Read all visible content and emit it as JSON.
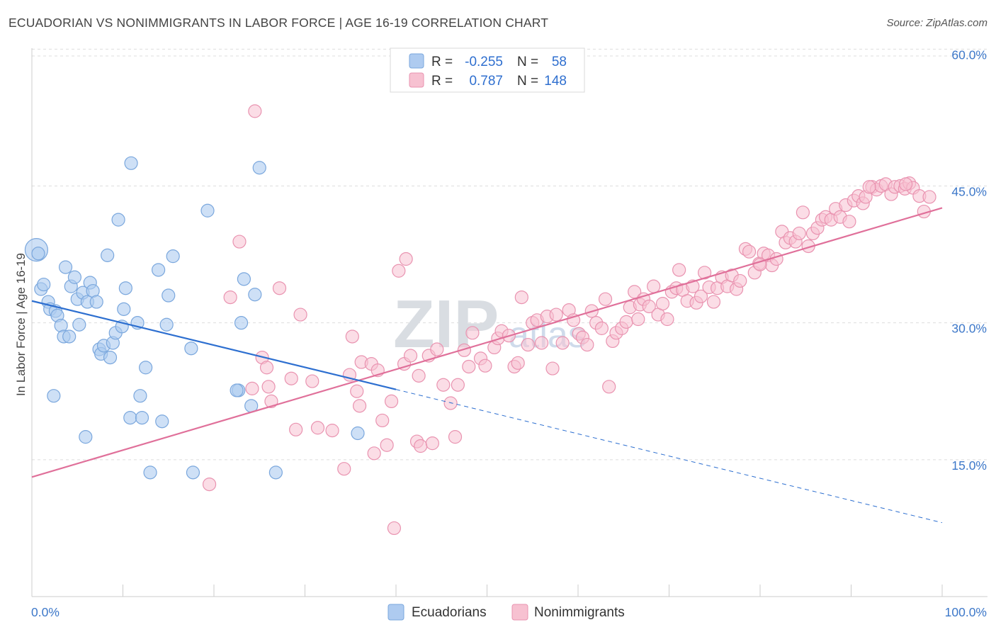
{
  "title": "ECUADORIAN VS NONIMMIGRANTS IN LABOR FORCE | AGE 16-19 CORRELATION CHART",
  "source": "Source: ZipAtlas.com",
  "watermark": {
    "zip": "ZIP",
    "atlas": "atlas"
  },
  "colors": {
    "blue_fill": "#aecbf0",
    "blue_stroke": "#7aa7dd",
    "blue_line": "#2d6fd0",
    "pink_fill": "#f7c1d1",
    "pink_stroke": "#e993b0",
    "pink_line": "#e0709a",
    "grid": "#dddddd",
    "tick_text": "#3d78c9"
  },
  "legend": {
    "rows": [
      {
        "r_label": "R =",
        "r_value": "-0.255",
        "n_label": "N =",
        "n_value": "58"
      },
      {
        "r_label": "R =",
        "r_value": "0.787",
        "n_label": "N =",
        "n_value": "148"
      }
    ]
  },
  "bottom_legend": {
    "series1": "Ecuadorians",
    "series2": "Nonimmigrants"
  },
  "chart_data": {
    "type": "scatter",
    "title": "ECUADORIAN VS NONIMMIGRANTS IN LABOR FORCE | AGE 16-19 CORRELATION CHART",
    "xlabel": "",
    "ylabel": "In Labor Force | Age 16-19",
    "xlim": [
      0,
      100
    ],
    "ylim": [
      0,
      61.5
    ],
    "x_tick_labels": [
      "0.0%",
      "100.0%"
    ],
    "y_ticks": [
      15,
      30,
      45,
      60
    ],
    "y_tick_labels": [
      "15.0%",
      "30.0%",
      "45.0%",
      "60.0%"
    ],
    "series": [
      {
        "name": "Ecuadorians",
        "r": -0.255,
        "n": 58,
        "trend": {
          "x0": 0,
          "y0": 32.4,
          "x1": 40,
          "y1": 22.7,
          "dash_to_x": 100,
          "dash_to_y": 8.1
        },
        "points": [
          [
            0.5,
            38
          ],
          [
            0.7,
            37.6
          ],
          [
            1.0,
            33.7
          ],
          [
            1.3,
            34.2
          ],
          [
            1.8,
            32.3
          ],
          [
            2.0,
            31.5
          ],
          [
            2.4,
            22
          ],
          [
            2.6,
            31.3
          ],
          [
            2.8,
            30.8
          ],
          [
            3.2,
            29.7
          ],
          [
            3.5,
            28.5
          ],
          [
            3.7,
            36.1
          ],
          [
            4.1,
            28.5
          ],
          [
            4.3,
            34
          ],
          [
            4.7,
            35
          ],
          [
            5.0,
            32.6
          ],
          [
            5.2,
            29.8
          ],
          [
            5.6,
            33.3
          ],
          [
            5.9,
            17.5
          ],
          [
            6.1,
            32.3
          ],
          [
            6.4,
            34.4
          ],
          [
            6.7,
            33.5
          ],
          [
            7.1,
            32.3
          ],
          [
            7.4,
            27.1
          ],
          [
            7.6,
            26.6
          ],
          [
            7.9,
            27.5
          ],
          [
            8.3,
            37.4
          ],
          [
            8.6,
            26.2
          ],
          [
            8.9,
            27.8
          ],
          [
            9.2,
            28.9
          ],
          [
            9.5,
            41.3
          ],
          [
            9.9,
            29.6
          ],
          [
            10.1,
            31.5
          ],
          [
            10.3,
            33.8
          ],
          [
            10.8,
            19.6
          ],
          [
            10.9,
            47.5
          ],
          [
            11.6,
            30
          ],
          [
            11.9,
            22
          ],
          [
            12.1,
            19.6
          ],
          [
            12.5,
            25.1
          ],
          [
            13.0,
            13.6
          ],
          [
            13.9,
            35.8
          ],
          [
            14.3,
            19.2
          ],
          [
            14.8,
            29.8
          ],
          [
            15.0,
            33
          ],
          [
            15.5,
            37.3
          ],
          [
            17.5,
            27.2
          ],
          [
            17.7,
            13.6
          ],
          [
            19.3,
            42.3
          ],
          [
            22.7,
            22.6
          ],
          [
            23.0,
            30
          ],
          [
            23.3,
            34.8
          ],
          [
            24.1,
            20.9
          ],
          [
            24.5,
            33.1
          ],
          [
            25.0,
            47
          ],
          [
            26.8,
            13.6
          ],
          [
            35.8,
            17.9
          ],
          [
            22.5,
            22.6
          ]
        ]
      },
      {
        "name": "Nonimmigrants",
        "r": 0.787,
        "n": 148,
        "trend": {
          "x0": 0,
          "y0": 13.1,
          "x1": 100,
          "y1": 42.6
        },
        "points": [
          [
            19.5,
            12.3
          ],
          [
            21.8,
            32.8
          ],
          [
            22.8,
            38.9
          ],
          [
            24.2,
            22.8
          ],
          [
            24.5,
            53.2
          ],
          [
            25.3,
            26.2
          ],
          [
            25.8,
            25.1
          ],
          [
            26.0,
            23
          ],
          [
            26.3,
            21.4
          ],
          [
            27.2,
            33.8
          ],
          [
            28.5,
            23.9
          ],
          [
            29.0,
            18.3
          ],
          [
            29.5,
            30.9
          ],
          [
            30.8,
            23.6
          ],
          [
            31.4,
            18.5
          ],
          [
            33.0,
            18.2
          ],
          [
            34.3,
            14
          ],
          [
            34.9,
            24.3
          ],
          [
            35.2,
            28.5
          ],
          [
            35.7,
            22.5
          ],
          [
            36.0,
            20.9
          ],
          [
            36.2,
            25.7
          ],
          [
            37.3,
            25.5
          ],
          [
            37.6,
            15.7
          ],
          [
            38.0,
            24.8
          ],
          [
            38.5,
            19.3
          ],
          [
            39.0,
            16.6
          ],
          [
            39.5,
            21.4
          ],
          [
            39.8,
            7.5
          ],
          [
            40.3,
            35.7
          ],
          [
            40.9,
            25.5
          ],
          [
            41.1,
            37
          ],
          [
            41.6,
            26.4
          ],
          [
            42.3,
            17
          ],
          [
            42.5,
            24.2
          ],
          [
            42.7,
            16.5
          ],
          [
            43.6,
            26.4
          ],
          [
            44.0,
            16.8
          ],
          [
            44.5,
            27.1
          ],
          [
            45.2,
            23.2
          ],
          [
            46.0,
            21.2
          ],
          [
            46.5,
            17.5
          ],
          [
            46.8,
            23.2
          ],
          [
            47.5,
            27
          ],
          [
            48.0,
            25.2
          ],
          [
            48.4,
            28.9
          ],
          [
            49.3,
            26.1
          ],
          [
            49.8,
            25.3
          ],
          [
            50.8,
            27.3
          ],
          [
            51.2,
            28.3
          ],
          [
            51.6,
            29.1
          ],
          [
            52.4,
            28.6
          ],
          [
            53.0,
            25.2
          ],
          [
            53.4,
            25.6
          ],
          [
            53.8,
            32.8
          ],
          [
            54.5,
            27.6
          ],
          [
            55.0,
            30
          ],
          [
            55.5,
            30.3
          ],
          [
            56.0,
            27.8
          ],
          [
            56.6,
            30.7
          ],
          [
            57.2,
            25
          ],
          [
            57.6,
            30.9
          ],
          [
            58.3,
            27.8
          ],
          [
            59.0,
            31.4
          ],
          [
            59.5,
            30.3
          ],
          [
            60.1,
            28.8
          ],
          [
            60.5,
            28.4
          ],
          [
            61.0,
            27.6
          ],
          [
            61.5,
            31.3
          ],
          [
            62.0,
            30
          ],
          [
            62.6,
            29.4
          ],
          [
            63.0,
            32.6
          ],
          [
            63.4,
            23
          ],
          [
            63.8,
            28
          ],
          [
            64.2,
            28.9
          ],
          [
            64.8,
            29.4
          ],
          [
            65.3,
            30.1
          ],
          [
            65.7,
            31.7
          ],
          [
            66.2,
            33.4
          ],
          [
            66.8,
            32
          ],
          [
            67.2,
            32.6
          ],
          [
            67.8,
            31.8
          ],
          [
            68.3,
            34
          ],
          [
            68.8,
            30.9
          ],
          [
            69.3,
            32.1
          ],
          [
            69.8,
            30.4
          ],
          [
            70.3,
            33.4
          ],
          [
            70.8,
            33.8
          ],
          [
            71.1,
            35.8
          ],
          [
            71.5,
            33.6
          ],
          [
            72.0,
            32.4
          ],
          [
            72.6,
            34
          ],
          [
            73.0,
            32.2
          ],
          [
            73.5,
            32.9
          ],
          [
            73.9,
            35.5
          ],
          [
            74.4,
            33.9
          ],
          [
            74.9,
            32.3
          ],
          [
            75.3,
            33.8
          ],
          [
            75.8,
            35
          ],
          [
            76.4,
            34
          ],
          [
            76.9,
            35.2
          ],
          [
            77.4,
            33.7
          ],
          [
            77.8,
            34.6
          ],
          [
            78.4,
            38.1
          ],
          [
            78.8,
            37.8
          ],
          [
            79.4,
            35.5
          ],
          [
            79.9,
            36.5
          ],
          [
            80.4,
            37.6
          ],
          [
            80.9,
            37.4
          ],
          [
            81.3,
            36.3
          ],
          [
            81.8,
            37
          ],
          [
            82.4,
            40
          ],
          [
            82.8,
            38.8
          ],
          [
            83.3,
            39.3
          ],
          [
            83.9,
            38.9
          ],
          [
            84.3,
            39.8
          ],
          [
            84.7,
            42.1
          ],
          [
            85.3,
            38.4
          ],
          [
            85.8,
            39.8
          ],
          [
            86.3,
            40.4
          ],
          [
            86.8,
            41.3
          ],
          [
            87.2,
            41.6
          ],
          [
            87.8,
            41.3
          ],
          [
            88.3,
            42.5
          ],
          [
            88.8,
            41.6
          ],
          [
            89.4,
            42.9
          ],
          [
            89.8,
            41.1
          ],
          [
            90.3,
            43.4
          ],
          [
            90.8,
            43.9
          ],
          [
            91.3,
            43.1
          ],
          [
            91.6,
            43.8
          ],
          [
            92.3,
            44.9
          ],
          [
            92.8,
            44.6
          ],
          [
            93.3,
            45
          ],
          [
            93.8,
            45.2
          ],
          [
            94.4,
            44.1
          ],
          [
            94.8,
            44.9
          ],
          [
            95.4,
            45
          ],
          [
            95.9,
            44.7
          ],
          [
            96.4,
            45.3
          ],
          [
            96.8,
            44.8
          ],
          [
            97.5,
            43.9
          ],
          [
            98.0,
            42.2
          ],
          [
            98.6,
            43.8
          ],
          [
            92.0,
            44.9
          ],
          [
            96.0,
            45.2
          ],
          [
            80.0,
            36.4
          ],
          [
            66.6,
            30.4
          ]
        ]
      }
    ]
  }
}
